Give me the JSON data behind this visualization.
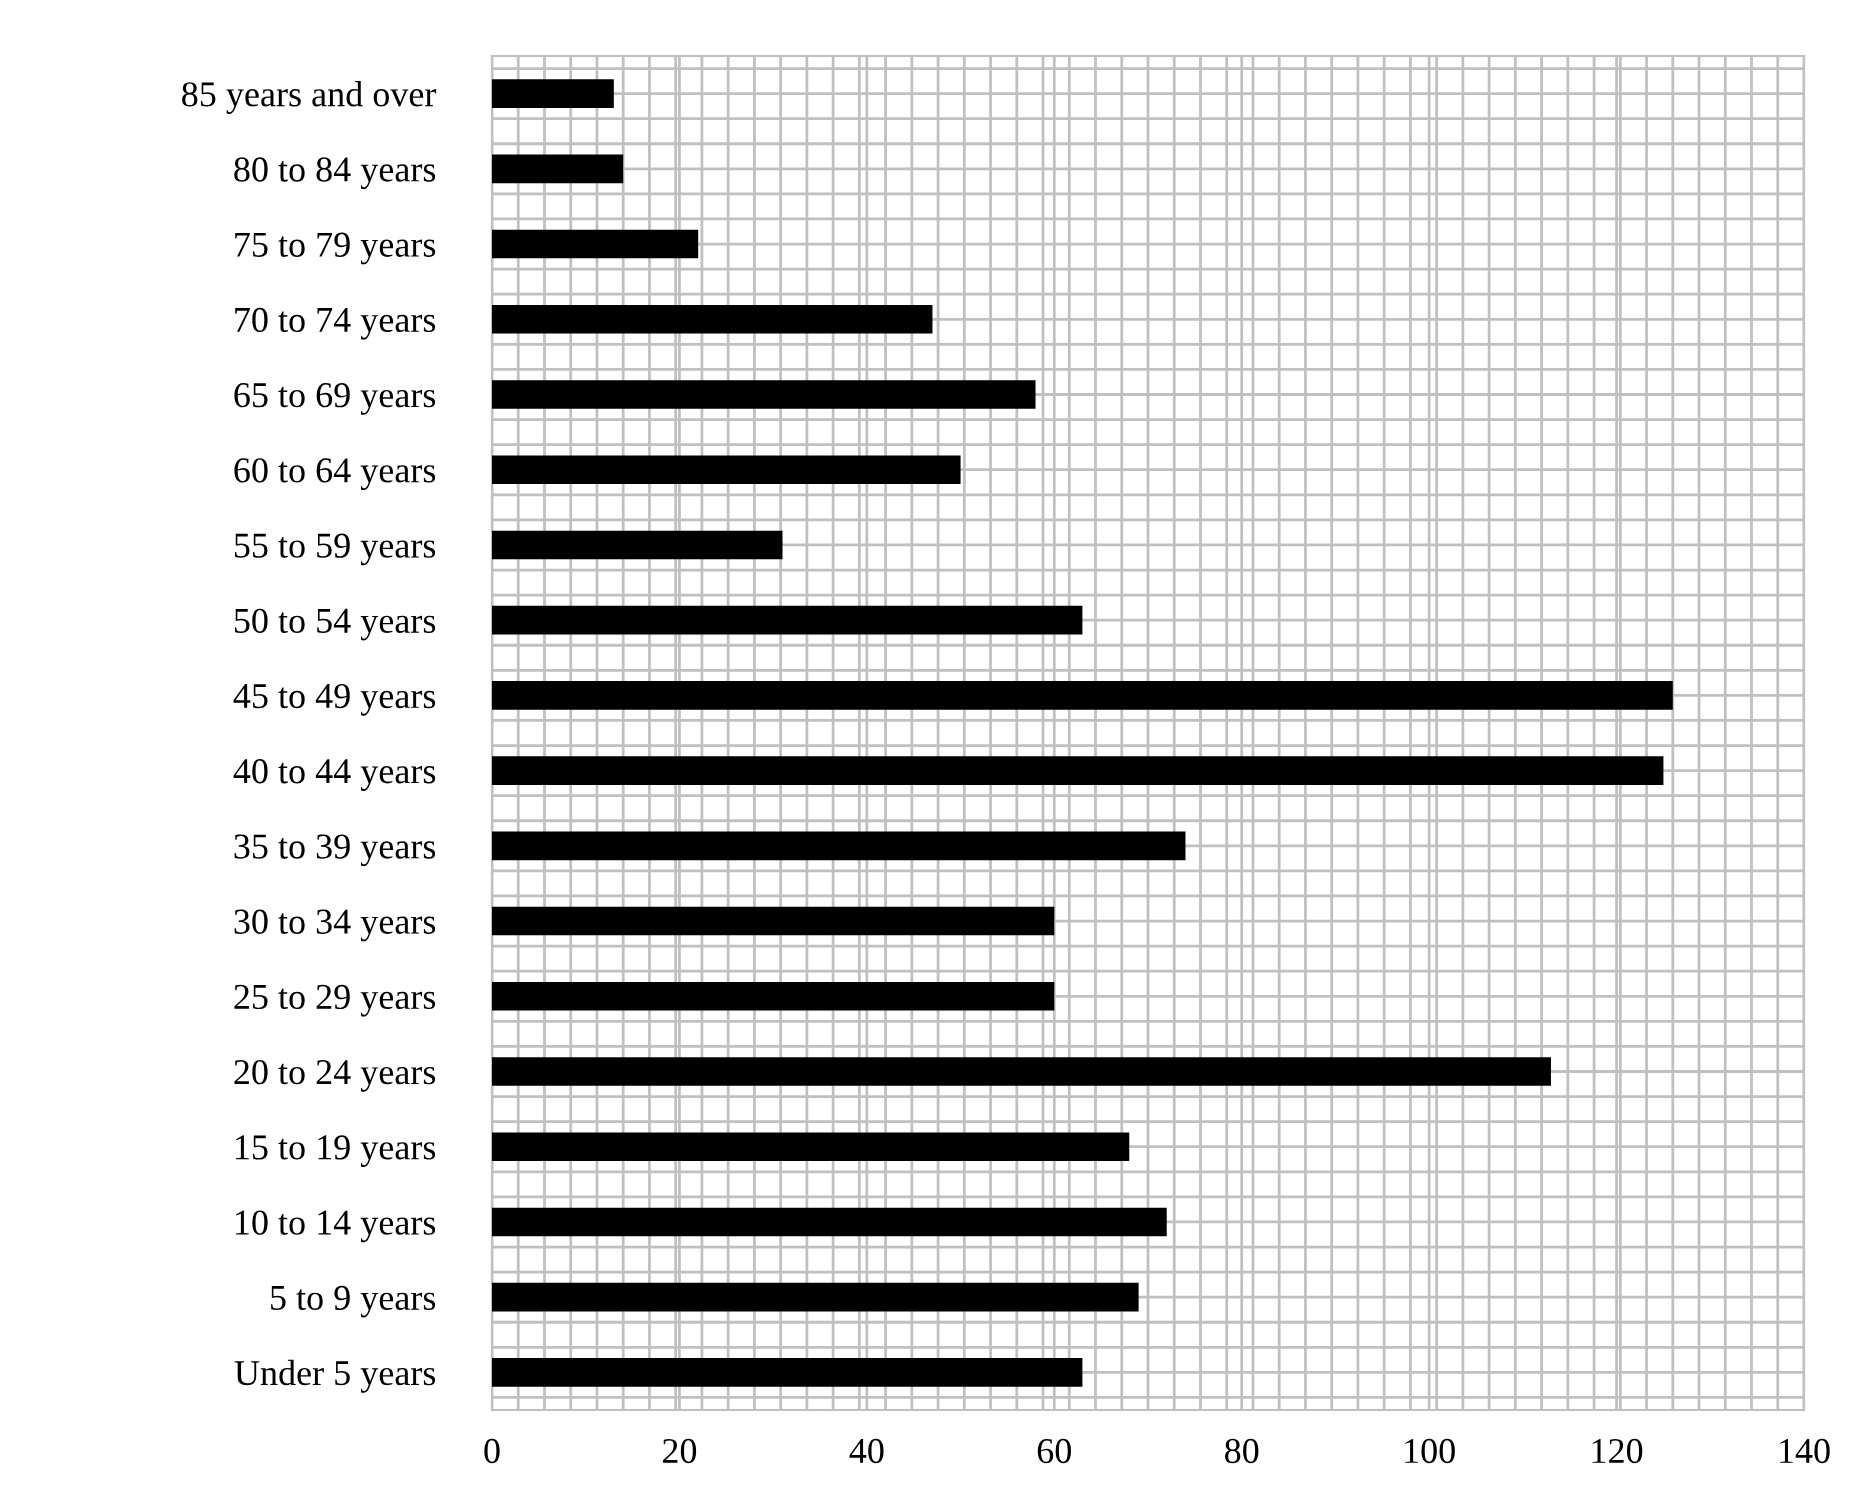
{
  "chart_data": {
    "type": "bar",
    "orientation": "horizontal",
    "categories": [
      "85 years and over",
      "80 to 84 years",
      "75 to 79 years",
      "70 to 74 years",
      "65 to 69 years",
      "60 to 64 years",
      "55 to 59 years",
      "50 to 54 years",
      "45 to 49 years",
      "40 to 44 years",
      "35 to 39 years",
      "30 to 34 years",
      "25 to 29 years",
      "20 to 24 years",
      "15 to 19 years",
      "10 to 14 years",
      "5 to 9 years",
      "Under 5 years"
    ],
    "values": [
      13,
      14,
      22,
      47,
      58,
      50,
      31,
      63,
      126,
      125,
      74,
      60,
      60,
      113,
      68,
      72,
      69,
      63
    ],
    "color": "#000000",
    "xlim": [
      0,
      140
    ],
    "xticks": [
      0,
      20,
      40,
      60,
      80,
      100,
      120,
      140
    ],
    "grid": true
  }
}
